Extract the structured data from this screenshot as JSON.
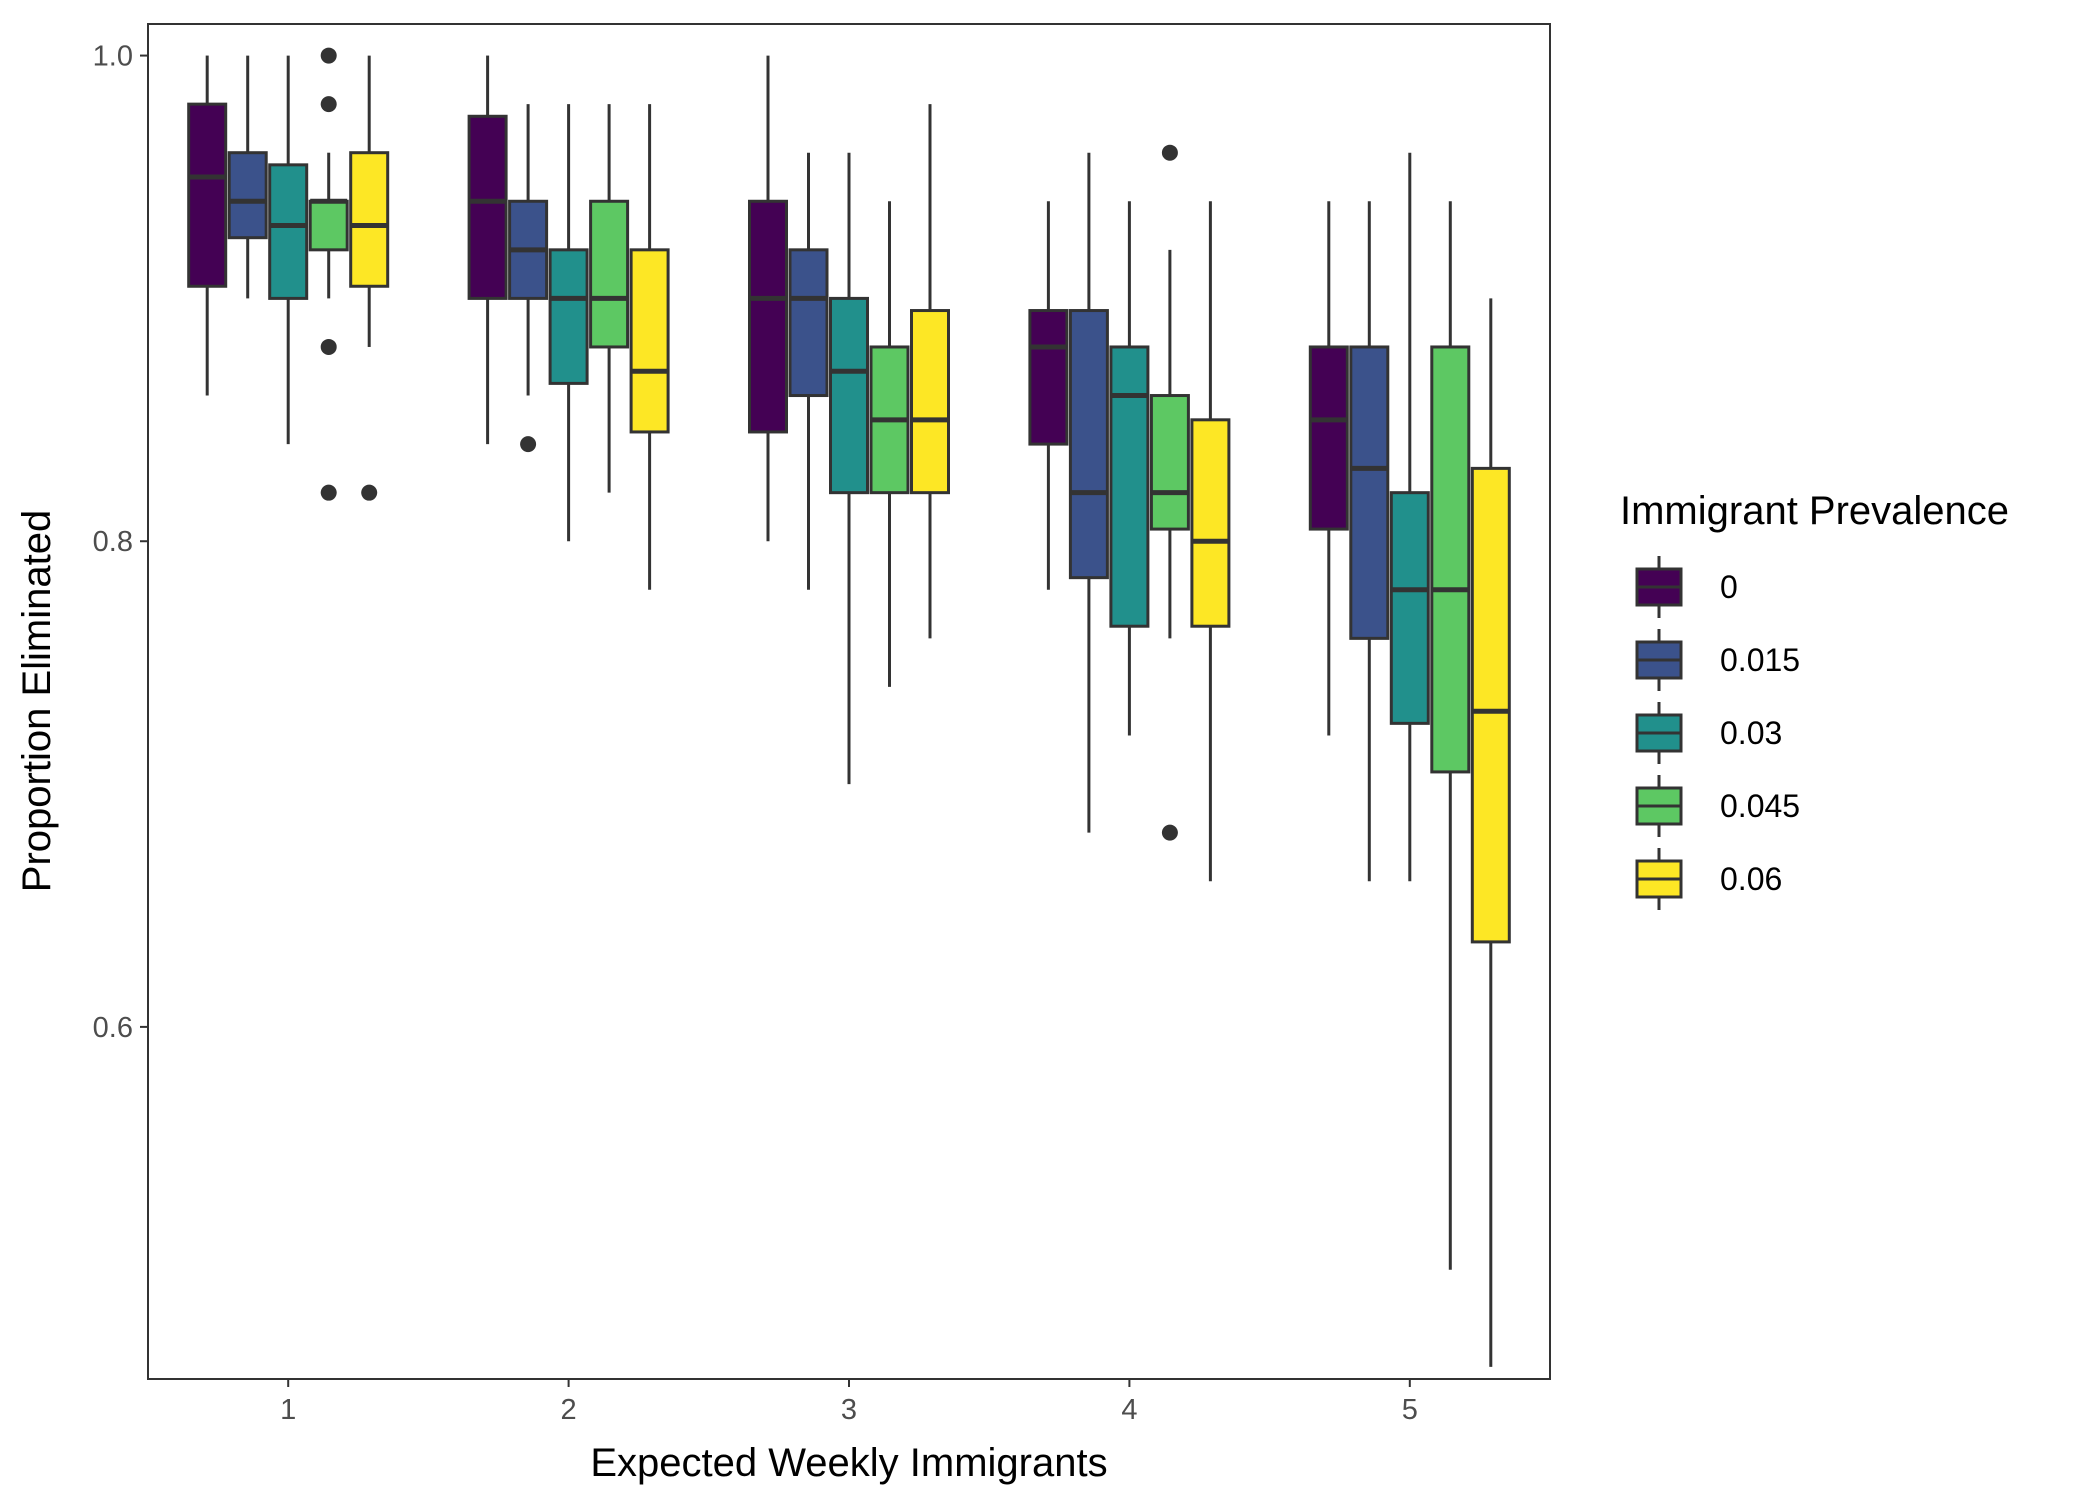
{
  "chart_data": {
    "type": "boxplot",
    "xlabel": "Expected Weekly Immigrants",
    "ylabel": "Proportion Eliminated",
    "categories": [
      "1",
      "2",
      "3",
      "4",
      "5"
    ],
    "ylim": [
      0.455,
      1.013
    ],
    "y_ticks": [
      0.6,
      0.8,
      1.0
    ],
    "y_tick_labels": [
      "0.6",
      "0.8",
      "1.0"
    ],
    "grid": false,
    "legend": {
      "title": "Immigrant Prevalence",
      "position": "right"
    },
    "series": [
      {
        "name": "0",
        "color": "#440154",
        "boxes": [
          {
            "whisker_low": 0.86,
            "q1": 0.905,
            "median": 0.95,
            "q3": 0.98,
            "whisker_high": 1.0,
            "outliers": []
          },
          {
            "whisker_low": 0.84,
            "q1": 0.9,
            "median": 0.94,
            "q3": 0.975,
            "whisker_high": 1.0,
            "outliers": []
          },
          {
            "whisker_low": 0.8,
            "q1": 0.845,
            "median": 0.9,
            "q3": 0.94,
            "whisker_high": 1.0,
            "outliers": []
          },
          {
            "whisker_low": 0.78,
            "q1": 0.84,
            "median": 0.88,
            "q3": 0.895,
            "whisker_high": 0.94,
            "outliers": []
          },
          {
            "whisker_low": 0.72,
            "q1": 0.805,
            "median": 0.85,
            "q3": 0.88,
            "whisker_high": 0.94,
            "outliers": []
          }
        ]
      },
      {
        "name": "0.015",
        "color": "#3B528B",
        "boxes": [
          {
            "whisker_low": 0.9,
            "q1": 0.925,
            "median": 0.94,
            "q3": 0.96,
            "whisker_high": 1.0,
            "outliers": []
          },
          {
            "whisker_low": 0.86,
            "q1": 0.9,
            "median": 0.92,
            "q3": 0.94,
            "whisker_high": 0.98,
            "outliers": [
              0.84
            ]
          },
          {
            "whisker_low": 0.78,
            "q1": 0.86,
            "median": 0.9,
            "q3": 0.92,
            "whisker_high": 0.96,
            "outliers": []
          },
          {
            "whisker_low": 0.68,
            "q1": 0.785,
            "median": 0.82,
            "q3": 0.895,
            "whisker_high": 0.96,
            "outliers": []
          },
          {
            "whisker_low": 0.66,
            "q1": 0.76,
            "median": 0.83,
            "q3": 0.88,
            "whisker_high": 0.94,
            "outliers": []
          }
        ]
      },
      {
        "name": "0.03",
        "color": "#21908C",
        "boxes": [
          {
            "whisker_low": 0.84,
            "q1": 0.9,
            "median": 0.93,
            "q3": 0.955,
            "whisker_high": 1.0,
            "outliers": []
          },
          {
            "whisker_low": 0.8,
            "q1": 0.865,
            "median": 0.9,
            "q3": 0.92,
            "whisker_high": 0.98,
            "outliers": []
          },
          {
            "whisker_low": 0.7,
            "q1": 0.82,
            "median": 0.87,
            "q3": 0.9,
            "whisker_high": 0.96,
            "outliers": []
          },
          {
            "whisker_low": 0.72,
            "q1": 0.765,
            "median": 0.86,
            "q3": 0.88,
            "whisker_high": 0.94,
            "outliers": []
          },
          {
            "whisker_low": 0.66,
            "q1": 0.725,
            "median": 0.78,
            "q3": 0.82,
            "whisker_high": 0.96,
            "outliers": []
          }
        ]
      },
      {
        "name": "0.045",
        "color": "#5DC863",
        "boxes": [
          {
            "whisker_low": 0.9,
            "q1": 0.92,
            "median": 0.94,
            "q3": 0.94,
            "whisker_high": 0.96,
            "outliers": [
              1.0,
              0.98,
              0.88,
              0.82
            ]
          },
          {
            "whisker_low": 0.82,
            "q1": 0.88,
            "median": 0.9,
            "q3": 0.94,
            "whisker_high": 0.98,
            "outliers": []
          },
          {
            "whisker_low": 0.74,
            "q1": 0.82,
            "median": 0.85,
            "q3": 0.88,
            "whisker_high": 0.94,
            "outliers": []
          },
          {
            "whisker_low": 0.76,
            "q1": 0.805,
            "median": 0.82,
            "q3": 0.86,
            "whisker_high": 0.92,
            "outliers": [
              0.96,
              0.68
            ]
          },
          {
            "whisker_low": 0.5,
            "q1": 0.705,
            "median": 0.78,
            "q3": 0.88,
            "whisker_high": 0.94,
            "outliers": []
          }
        ]
      },
      {
        "name": "0.06",
        "color": "#FDE725",
        "boxes": [
          {
            "whisker_low": 0.88,
            "q1": 0.905,
            "median": 0.93,
            "q3": 0.96,
            "whisker_high": 1.0,
            "outliers": [
              0.82
            ]
          },
          {
            "whisker_low": 0.78,
            "q1": 0.845,
            "median": 0.87,
            "q3": 0.92,
            "whisker_high": 0.98,
            "outliers": []
          },
          {
            "whisker_low": 0.76,
            "q1": 0.82,
            "median": 0.85,
            "q3": 0.895,
            "whisker_high": 0.98,
            "outliers": []
          },
          {
            "whisker_low": 0.66,
            "q1": 0.765,
            "median": 0.8,
            "q3": 0.85,
            "whisker_high": 0.94,
            "outliers": []
          },
          {
            "whisker_low": 0.46,
            "q1": 0.635,
            "median": 0.73,
            "q3": 0.83,
            "whisker_high": 0.9,
            "outliers": []
          }
        ]
      }
    ]
  }
}
